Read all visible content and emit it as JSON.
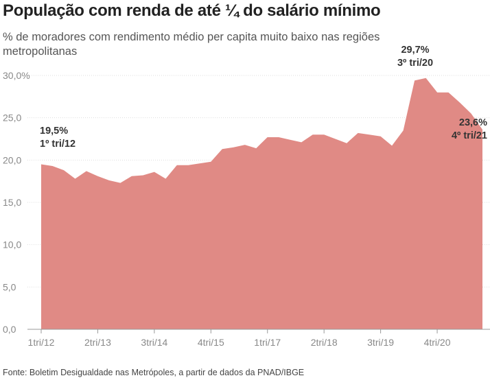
{
  "chart_data": {
    "type": "area",
    "title": "População com renda de até ¼ do salário mínimo",
    "subtitle": "% de moradores com rendimento médio per capita muito baixo nas regiões metropolitanas",
    "source": "Fonte: Boletim Desigualdade nas Metrópoles, a partir de dados da PNAD/IBGE",
    "ylim": [
      0,
      30
    ],
    "y_ticks": [
      "0,0",
      "5,0",
      "10,0",
      "15,0",
      "20,0",
      "25,0",
      "30,0%"
    ],
    "y_tick_values": [
      0,
      5,
      10,
      15,
      20,
      25,
      30
    ],
    "x_ticks": [
      "1tri/12",
      "2tri/13",
      "3tri/14",
      "4tri/15",
      "1tri/17",
      "2tri/18",
      "3tri/19",
      "4tri/20"
    ],
    "x_tick_index": [
      0,
      5,
      10,
      15,
      20,
      25,
      30,
      35
    ],
    "color": "#e08a85",
    "values": [
      19.5,
      19.3,
      18.8,
      17.8,
      18.7,
      18.1,
      17.6,
      17.3,
      18.1,
      18.2,
      18.6,
      17.8,
      19.4,
      19.4,
      19.6,
      19.8,
      21.3,
      21.5,
      21.8,
      21.4,
      22.7,
      22.7,
      22.4,
      22.1,
      23.0,
      23.0,
      22.5,
      22.0,
      23.2,
      23.0,
      22.8,
      21.7,
      23.5,
      29.4,
      29.7,
      28.0,
      28.0,
      26.8,
      25.5,
      23.6
    ],
    "annotations": [
      {
        "value": "19,5%",
        "label": "1º tri/12",
        "index": 0
      },
      {
        "value": "29,7%",
        "label": "3º tri/20",
        "index": 34
      },
      {
        "value": "23,6%",
        "label": "4º tri/21",
        "index": 39
      }
    ]
  }
}
